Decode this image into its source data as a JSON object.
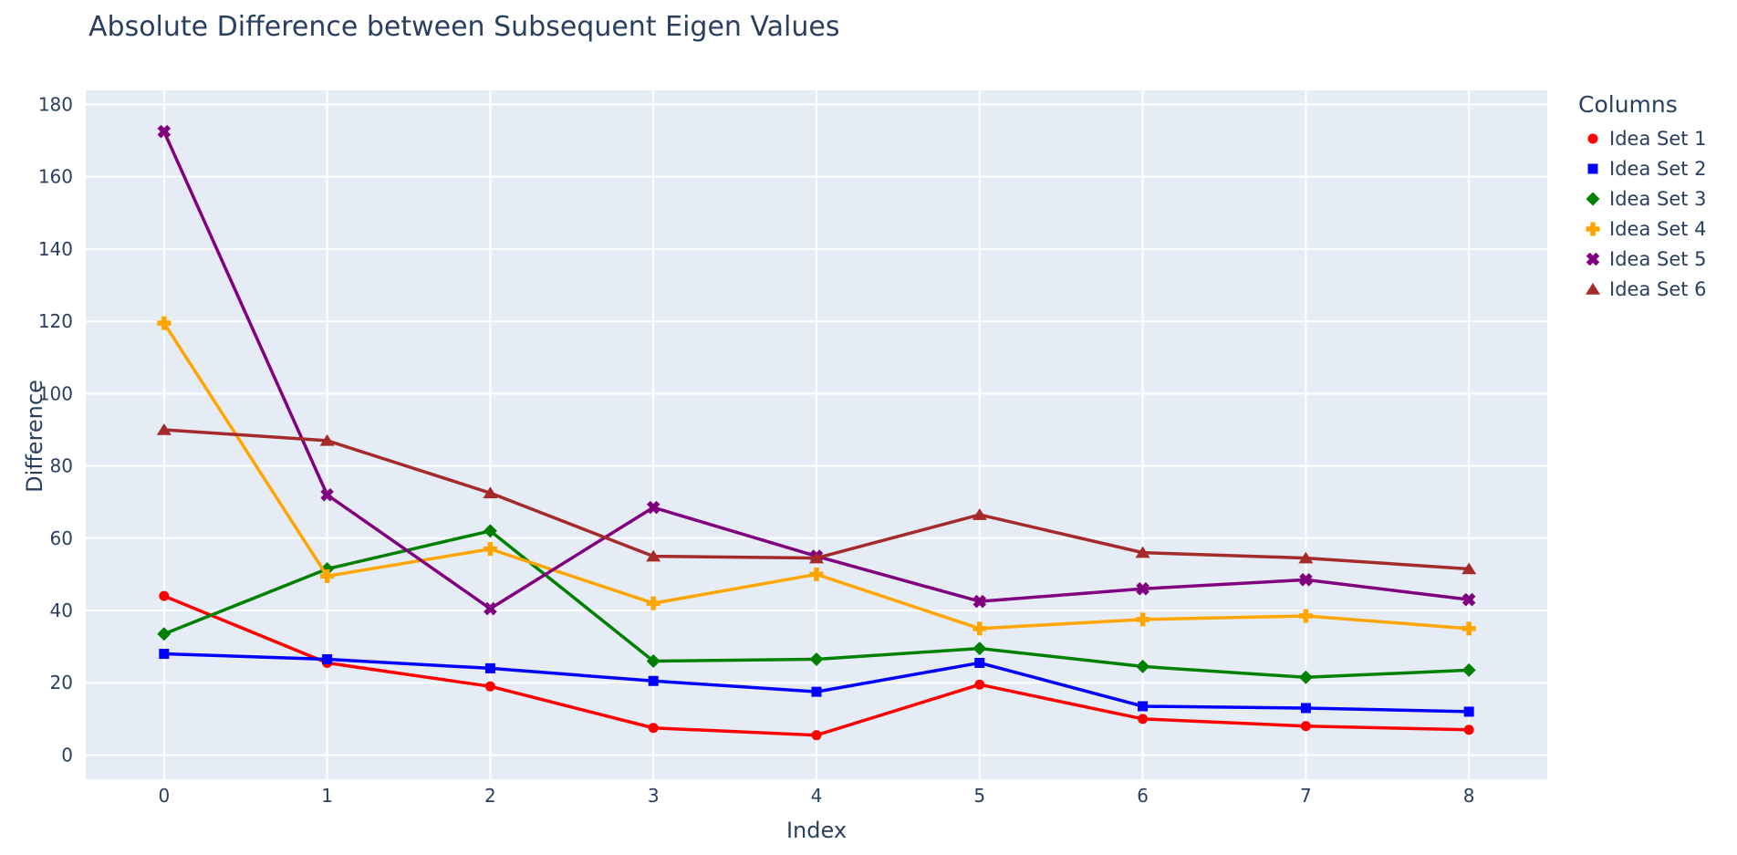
{
  "colors": {
    "page_bg": "#ffffff",
    "plot_bg": "#e5ecf6",
    "grid": "#ffffff",
    "text": "#2a3f5f"
  },
  "chart_data": {
    "type": "line",
    "title": "Absolute Difference between Subsequent Eigen Values",
    "xlabel": "Index",
    "ylabel": "Difference",
    "legend_title": "Columns",
    "legend_position": "right",
    "grid": true,
    "x": [
      0,
      1,
      2,
      3,
      4,
      5,
      6,
      7,
      8
    ],
    "x_ticks": [
      0,
      1,
      2,
      3,
      4,
      5,
      6,
      7,
      8
    ],
    "y_ticks": [
      0,
      20,
      40,
      60,
      80,
      100,
      120,
      140,
      160,
      180
    ],
    "xlim": [
      -0.48,
      8.48
    ],
    "ylim": [
      -6.7,
      183.9
    ],
    "series": [
      {
        "name": "Idea Set 1",
        "color": "#ff0000",
        "symbol": "circle",
        "values": [
          44,
          25.5,
          19,
          7.5,
          5.5,
          19.5,
          10,
          8,
          7
        ]
      },
      {
        "name": "Idea Set 2",
        "color": "#0000ff",
        "symbol": "square",
        "values": [
          28,
          26.5,
          24,
          20.5,
          17.5,
          25.5,
          13.5,
          13,
          12
        ]
      },
      {
        "name": "Idea Set 3",
        "color": "#008000",
        "symbol": "diamond",
        "values": [
          33.5,
          51.5,
          62,
          26,
          26.5,
          29.5,
          24.5,
          21.5,
          23.5
        ]
      },
      {
        "name": "Idea Set 4",
        "color": "#ffa500",
        "symbol": "cross",
        "values": [
          119.5,
          49.5,
          57,
          42,
          50,
          35,
          37.5,
          38.5,
          35
        ]
      },
      {
        "name": "Idea Set 5",
        "color": "#800080",
        "symbol": "x",
        "values": [
          172.5,
          72,
          40.5,
          68.5,
          55,
          42.5,
          46,
          48.5,
          43
        ]
      },
      {
        "name": "Idea Set 6",
        "color": "#a52a2a",
        "symbol": "triangle-up",
        "values": [
          90,
          87,
          72.5,
          55,
          54.5,
          66.5,
          56,
          54.5,
          51.5
        ]
      }
    ]
  }
}
